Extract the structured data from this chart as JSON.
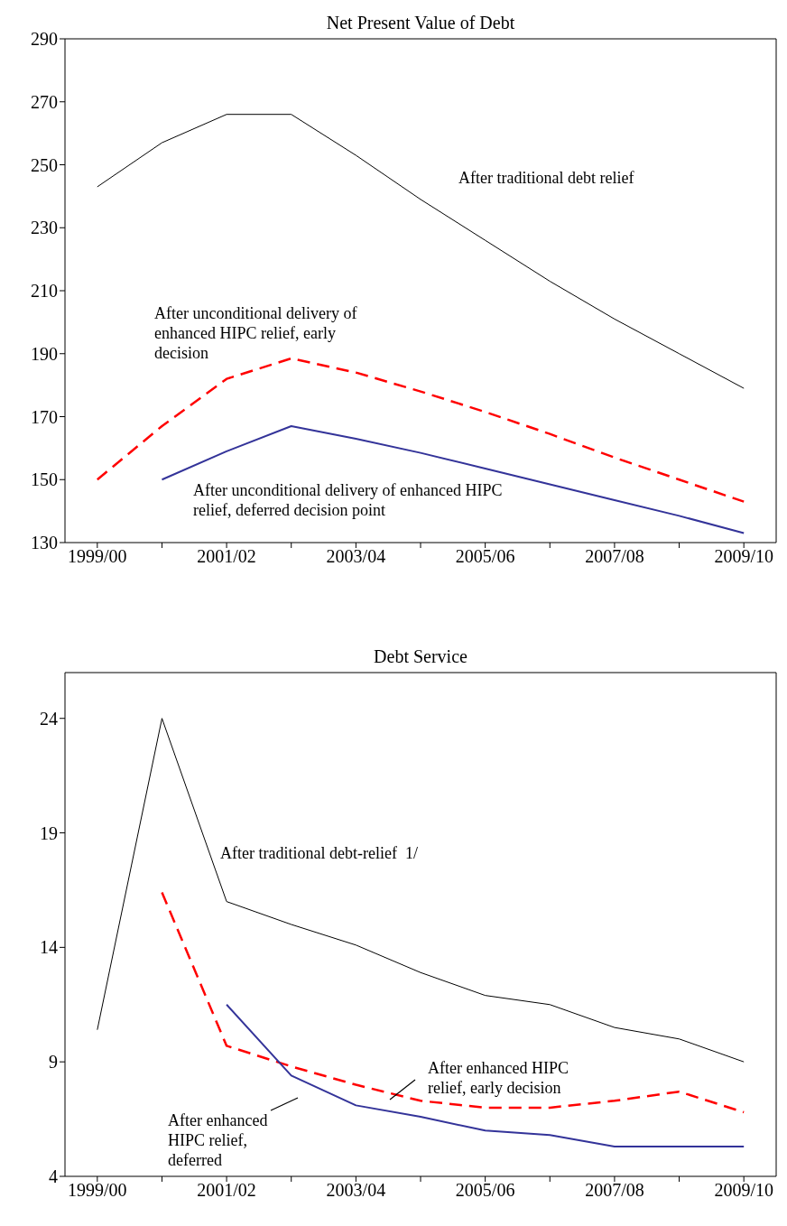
{
  "chart_data": [
    {
      "type": "line",
      "title": "Net Present Value of Debt",
      "categories": [
        "1999/00",
        null,
        "2001/02",
        null,
        "2003/04",
        null,
        "2005/06",
        null,
        "2007/08",
        null,
        "2009/10"
      ],
      "ylim": [
        130,
        290
      ],
      "yticks": [
        130,
        150,
        170,
        190,
        210,
        230,
        250,
        270,
        290
      ],
      "marker": "none",
      "series": [
        {
          "name": "After traditional debt relief",
          "color": "#000000",
          "line_style": "solid",
          "values": [
            243,
            257,
            266,
            266,
            253,
            239,
            226,
            213,
            201,
            190,
            179
          ]
        },
        {
          "name": "After unconditional delivery of enhanced HIPC relief, early decision",
          "color": "#ff0000",
          "line_style": "dashed",
          "values": [
            150,
            167,
            182,
            188.5,
            184,
            178,
            171.5,
            164.5,
            157,
            150,
            143
          ]
        },
        {
          "name": "After unconditional delivery of enhanced HIPC relief, deferred decision point",
          "color": "#333399",
          "line_style": "solid",
          "values": [
            null,
            150,
            159,
            167,
            163,
            158.5,
            153.5,
            148.5,
            143.5,
            138.5,
            133
          ]
        }
      ]
    },
    {
      "type": "line",
      "title": "Debt Service",
      "categories": [
        "1999/00",
        null,
        "2001/02",
        null,
        "2003/04",
        null,
        "2005/06",
        null,
        "2007/08",
        null,
        "2009/10"
      ],
      "ylim": [
        4,
        26
      ],
      "yticks": [
        4,
        9,
        14,
        19,
        24
      ],
      "marker": "none",
      "series": [
        {
          "name": "After traditional debt-relief  1/",
          "color": "#000000",
          "line_style": "solid",
          "values": [
            10.4,
            24,
            16,
            15,
            14.1,
            12.9,
            11.9,
            11.5,
            10.5,
            10,
            9
          ]
        },
        {
          "name": "After enhanced HIPC relief, early decision",
          "color": "#ff0000",
          "line_style": "dashed",
          "values": [
            null,
            16.4,
            9.7,
            8.8,
            8,
            7.3,
            7,
            7,
            7.3,
            7.7,
            6.8
          ]
        },
        {
          "name": "After enhanced HIPC relief, deferred",
          "color": "#333399",
          "line_style": "solid",
          "values": [
            null,
            null,
            11.5,
            8.4,
            7.1,
            6.6,
            6,
            5.8,
            5.3,
            5.3,
            5.3
          ]
        }
      ]
    }
  ]
}
